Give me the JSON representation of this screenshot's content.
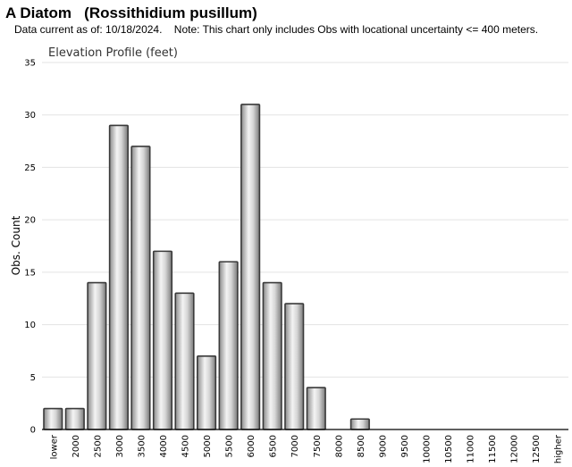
{
  "header": {
    "title": "A Diatom   (Rossithidium pusillum)",
    "subtitle": "Data current as of: 10/18/2024.    Note: This chart only includes Obs with locational uncertainty <= 400 meters."
  },
  "chart_data": {
    "type": "bar",
    "title": "Elevation Profile (feet)",
    "xlabel": "",
    "ylabel": "Obs. Count",
    "ylim": [
      0,
      35
    ],
    "yticks": [
      0,
      5,
      10,
      15,
      20,
      25,
      30,
      35
    ],
    "grid": true,
    "categories": [
      "lower",
      "2000",
      "2500",
      "3000",
      "3500",
      "4000",
      "4500",
      "5000",
      "5500",
      "6000",
      "6500",
      "7000",
      "7500",
      "8000",
      "8500",
      "9000",
      "9500",
      "10000",
      "10500",
      "11000",
      "11500",
      "12000",
      "12500",
      "higher"
    ],
    "values": [
      2,
      2,
      14,
      29,
      27,
      17,
      13,
      7,
      16,
      31,
      14,
      12,
      4,
      0,
      1,
      0,
      0,
      0,
      0,
      0,
      0,
      0,
      0,
      0
    ],
    "colors": {
      "bar_light": "#f2f2f2",
      "bar_dark": "#8a8a8a",
      "bar_stroke": "#3a3a3a",
      "grid": "#e3e3e3",
      "axis": "#000000"
    }
  }
}
